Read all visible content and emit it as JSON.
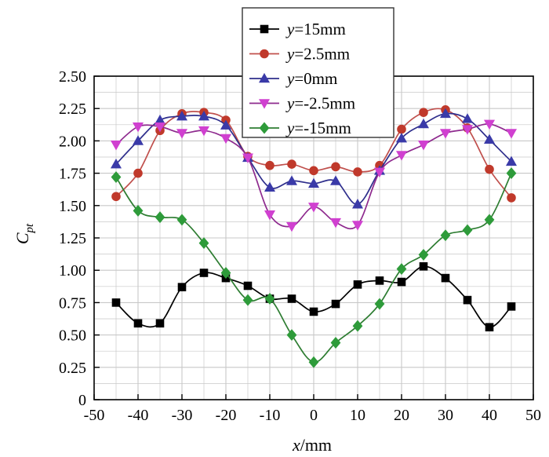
{
  "chart_data": {
    "type": "line",
    "title": "",
    "xlabel_italic": "x",
    "xlabel_unit": "/mm",
    "ylabel_main": "C",
    "ylabel_sub": "pt",
    "xlim": [
      -50,
      50
    ],
    "ylim": [
      0,
      2.5
    ],
    "x_ticks": [
      "-50",
      "-40",
      "-30",
      "-20",
      "-10",
      "0",
      "10",
      "20",
      "30",
      "40",
      "50"
    ],
    "x_tick_values": [
      -50,
      -40,
      -30,
      -20,
      -10,
      0,
      10,
      20,
      30,
      40,
      50
    ],
    "y_ticks": [
      "0",
      "0.25",
      "0.50",
      "0.75",
      "1.00",
      "1.25",
      "1.50",
      "1.75",
      "2.00",
      "2.25",
      "2.50"
    ],
    "y_tick_values": [
      0,
      0.25,
      0.5,
      0.75,
      1.0,
      1.25,
      1.5,
      1.75,
      2.0,
      2.25,
      2.5
    ],
    "grid": true,
    "legend_position": "top-center",
    "x": [
      -45,
      -40,
      -35,
      -30,
      -25,
      -20,
      -15,
      -10,
      -5,
      0,
      5,
      10,
      15,
      20,
      25,
      30,
      35,
      40,
      45
    ],
    "series": [
      {
        "name": "y=15mm",
        "name_italic": "y",
        "name_rest": "=15mm",
        "marker": "square",
        "line_color": "#000000",
        "marker_color": "#000000",
        "values": [
          0.75,
          0.59,
          0.59,
          0.87,
          0.98,
          0.94,
          0.88,
          0.78,
          0.78,
          0.68,
          0.74,
          0.89,
          0.92,
          0.91,
          1.03,
          0.94,
          0.77,
          0.56,
          0.72
        ]
      },
      {
        "name": "y=2.5mm",
        "name_italic": "y",
        "name_rest": "=2.5mm",
        "marker": "circle",
        "line_color": "#c0504d",
        "marker_color": "#c0392b",
        "values": [
          1.57,
          1.75,
          2.08,
          2.21,
          2.22,
          2.16,
          1.88,
          1.81,
          1.82,
          1.77,
          1.8,
          1.76,
          1.81,
          2.09,
          2.22,
          2.24,
          2.1,
          1.78,
          1.56
        ]
      },
      {
        "name": "y=0mm",
        "name_italic": "y",
        "name_rest": "=0mm",
        "marker": "triangle-up",
        "line_color": "#2e2e8c",
        "marker_color": "#3a3aa8",
        "values": [
          1.82,
          2.0,
          2.16,
          2.19,
          2.19,
          2.12,
          1.87,
          1.64,
          1.69,
          1.67,
          1.69,
          1.51,
          1.77,
          2.02,
          2.13,
          2.21,
          2.17,
          2.01,
          1.84
        ]
      },
      {
        "name": "y=-2.5mm",
        "name_italic": "y",
        "name_rest": "=-2.5mm",
        "marker": "triangle-down",
        "line_color": "#8e2a8e",
        "marker_color": "#d040d0",
        "values": [
          1.97,
          2.11,
          2.11,
          2.06,
          2.08,
          2.02,
          1.87,
          1.43,
          1.34,
          1.49,
          1.37,
          1.35,
          1.76,
          1.89,
          1.97,
          2.06,
          2.09,
          2.13,
          2.06
        ]
      },
      {
        "name": "y=-15mm",
        "name_italic": "y",
        "name_rest": "=-15mm",
        "marker": "diamond",
        "line_color": "#2e7d32",
        "marker_color": "#2e9b3a",
        "values": [
          1.72,
          1.46,
          1.41,
          1.39,
          1.21,
          0.98,
          0.77,
          0.78,
          0.5,
          0.29,
          0.44,
          0.57,
          0.74,
          1.01,
          1.12,
          1.27,
          1.31,
          1.39,
          1.75
        ]
      }
    ]
  }
}
